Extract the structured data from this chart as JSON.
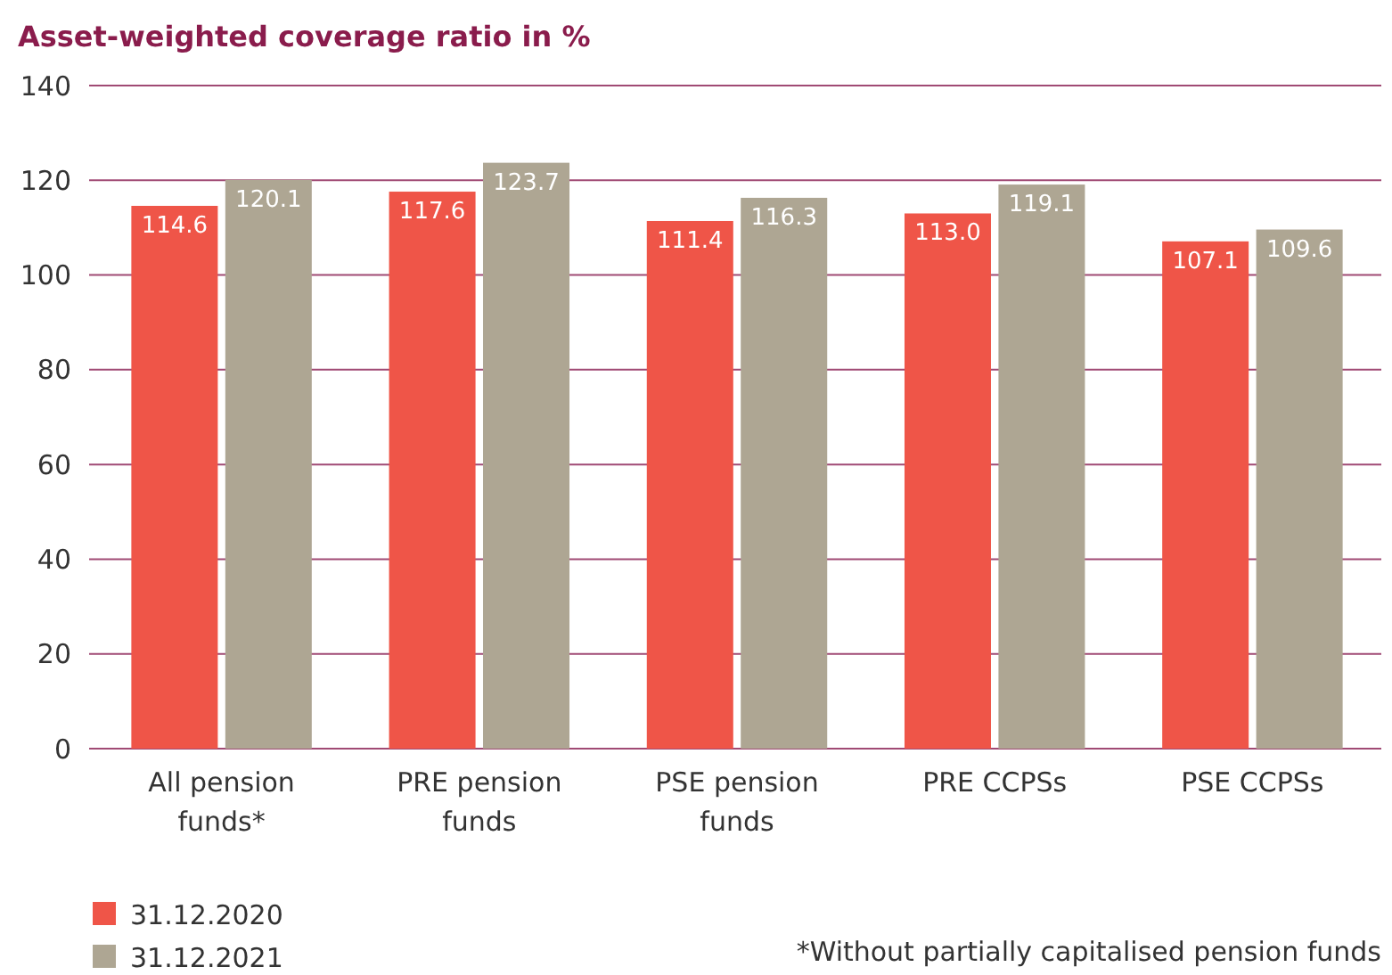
{
  "chart_data": {
    "type": "bar",
    "title": "Asset-weighted coverage ratio in %",
    "categories": [
      "All pension funds*",
      "PRE pension funds",
      "PSE pension funds",
      "PRE CCPSs",
      "PSE CCPSs"
    ],
    "series": [
      {
        "name": "31.12.2020",
        "color": "#ef5548",
        "values": [
          114.6,
          117.6,
          111.4,
          113.0,
          107.1
        ],
        "value_labels": [
          "114.6",
          "117.6",
          "111.4",
          "113.0",
          "107.1"
        ]
      },
      {
        "name": "31.12.2021",
        "color": "#aea693",
        "values": [
          120.1,
          123.7,
          116.3,
          119.1,
          109.6
        ],
        "value_labels": [
          "120.1",
          "123.7",
          "116.3",
          "119.1",
          "109.6"
        ]
      }
    ],
    "ylim": [
      0,
      140
    ],
    "yticks": [
      0,
      20,
      40,
      60,
      80,
      100,
      120,
      140
    ],
    "grid": "y",
    "legend": "bottom left",
    "annotations": [
      "*Without partially capitalised pension funds"
    ]
  }
}
